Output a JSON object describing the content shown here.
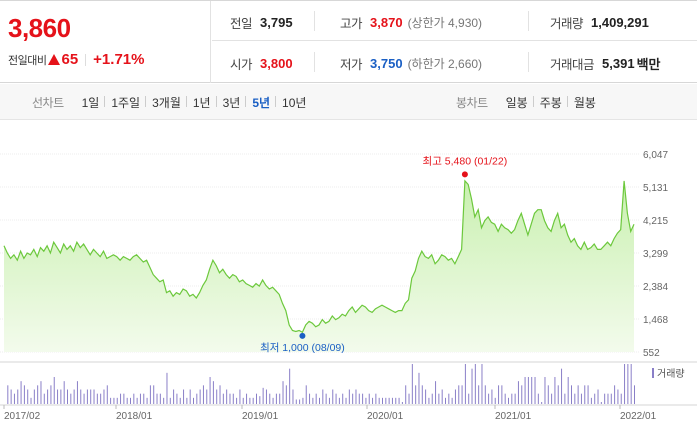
{
  "price": {
    "current": "3,860",
    "change_label": "전일대비",
    "change_value": "65",
    "change_percent": "+1.71%"
  },
  "stats": {
    "prev_close_label": "전일",
    "prev_close": "3,795",
    "high_label": "고가",
    "high": "3,870",
    "upper_limit": "(상한가 4,930)",
    "volume_label": "거래량",
    "volume": "1,409,291",
    "open_label": "시가",
    "open": "3,800",
    "low_label": "저가",
    "low": "3,750",
    "lower_limit": "(하한가 2,660)",
    "amount_label": "거래대금",
    "amount": "5,391",
    "amount_unit": "백만"
  },
  "toolbar": {
    "line_chart_title": "선차트",
    "line_periods": [
      "1일",
      "1주일",
      "3개월",
      "1년",
      "3년",
      "5년",
      "10년"
    ],
    "active_period": "5년",
    "candle_chart_title": "봉차트",
    "candle_periods": [
      "일봉",
      "주봉",
      "월봉"
    ]
  },
  "chart_data": {
    "type": "area",
    "y_ticks": [
      "6,047",
      "5,131",
      "4,215",
      "3,299",
      "2,384",
      "1,468",
      "552"
    ],
    "ylim": [
      552,
      6047
    ],
    "x_ticks": [
      "2017/02",
      "2018/01",
      "2019/01",
      "2020/01",
      "2021/01",
      "2022/01"
    ],
    "max_annotation": "최고 5,480 (01/22)",
    "min_annotation": "최저 1,000 (08/09)",
    "volume_legend": "거래량",
    "colors": {
      "line": "#6cc83c",
      "fill_top": "#c9f0b0",
      "fill_bottom": "#f3fbec",
      "max": "#e5121a",
      "min": "#1a5fc4",
      "volume": "#8a7fc8"
    },
    "series": [
      {
        "values": [
          3500,
          3300,
          3150,
          3250,
          3100,
          3350,
          3150,
          3300,
          3250,
          3400,
          3200,
          3450,
          3350,
          3500,
          3300,
          3600,
          3450,
          3300,
          3550,
          3400,
          3500,
          3350,
          3600,
          3450,
          3550,
          3400,
          3250,
          3400,
          3300,
          3200,
          3350,
          3150,
          3200,
          3250,
          3200,
          3100,
          3200,
          3150,
          3100,
          3200,
          3250,
          3150,
          3050,
          3100,
          2900,
          2700,
          2600,
          2500,
          2550,
          2200,
          2250,
          2100,
          2200,
          2150,
          2300,
          2250,
          2100,
          2150,
          2050,
          2200,
          2400,
          2550,
          2850,
          3100,
          2950,
          2750,
          2850,
          2700,
          2600,
          2700,
          2650,
          2500,
          2550,
          2450,
          2400,
          2350,
          2450,
          2380,
          2550,
          2400,
          2300,
          2350,
          2250,
          2150,
          1900,
          1700,
          1300,
          1150,
          1120,
          1150,
          1100,
          1300,
          1400,
          1350,
          1250,
          1300,
          1450,
          1350,
          1400,
          1550,
          1450,
          1500,
          1600,
          1550,
          1700,
          1800,
          1650,
          1750,
          1850,
          1800,
          1700,
          1650,
          1750,
          1800,
          1850,
          1800,
          1750,
          1700,
          1650,
          1700,
          1700,
          1900,
          2000,
          2600,
          2800,
          3150,
          3350,
          3200,
          3150,
          3250,
          3000,
          3100,
          3250,
          3200,
          3100,
          3150,
          3000,
          3200,
          3400,
          5300,
          5200,
          4800,
          4300,
          4500,
          4000,
          4200,
          4300,
          4150,
          4100,
          3900,
          4100,
          4000,
          3950,
          3850,
          3950,
          4200,
          4400,
          4100,
          3800,
          4100,
          4400,
          4500,
          4500,
          4200,
          4000,
          3900,
          4200,
          4400,
          4000,
          4100,
          3800,
          3600,
          3700,
          3500,
          3400,
          3600,
          3400,
          3450,
          3550,
          3400,
          3400,
          3500,
          3600,
          3500,
          3700,
          3850,
          3950,
          5300,
          4400,
          3900,
          4100
        ]
      }
    ]
  }
}
